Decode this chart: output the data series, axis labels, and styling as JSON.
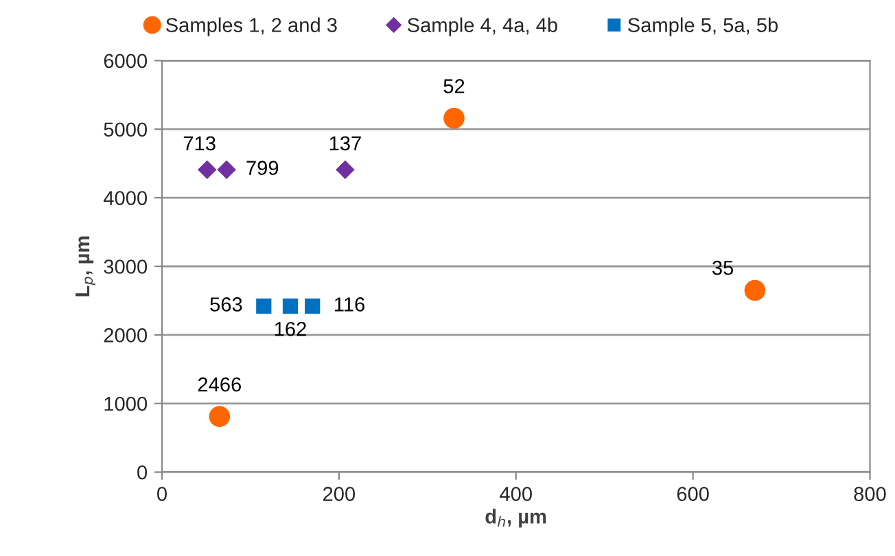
{
  "chart_data": {
    "type": "scatter",
    "xlabel": "d$_{h}$, µm",
    "ylabel": "L$_{p}$, µm",
    "xlim": [
      0,
      800
    ],
    "xticks": [
      0,
      200,
      400,
      600,
      800
    ],
    "ylim": [
      0,
      6000
    ],
    "yticks": [
      0,
      1000,
      2000,
      3000,
      4000,
      5000,
      6000
    ],
    "grid": "y",
    "legend": "top",
    "series": [
      {
        "name": "Samples 1, 2 and 3",
        "color": "#ff6600",
        "marker": "circle",
        "x": [
          65,
          330,
          670
        ],
        "values": [
          810,
          5160,
          2650
        ]
      },
      {
        "name": "Sample 4, 4a, 4b",
        "color": "#7030a0",
        "marker": "diamond",
        "x": [
          51,
          73,
          207
        ],
        "values": [
          4410,
          4410,
          4410
        ]
      },
      {
        "name": "Sample 5, 5a, 5b",
        "color": "#0070c0",
        "marker": "square",
        "x": [
          115,
          145,
          170
        ],
        "values": [
          2420,
          2420,
          2420
        ]
      }
    ],
    "annotations": [
      {
        "text": "2466",
        "x": 65,
        "y": 810
      },
      {
        "text": "52",
        "x": 330,
        "y": 5160
      },
      {
        "text": "35",
        "x": 670,
        "y": 2650
      },
      {
        "text": "713",
        "x": 51,
        "y": 4410
      },
      {
        "text": "799",
        "x": 73,
        "y": 4410
      },
      {
        "text": "137",
        "x": 207,
        "y": 4410
      },
      {
        "text": "563",
        "x": 115,
        "y": 2420
      },
      {
        "text": "162",
        "x": 145,
        "y": 2420
      },
      {
        "text": "116",
        "x": 170,
        "y": 2420
      }
    ]
  }
}
